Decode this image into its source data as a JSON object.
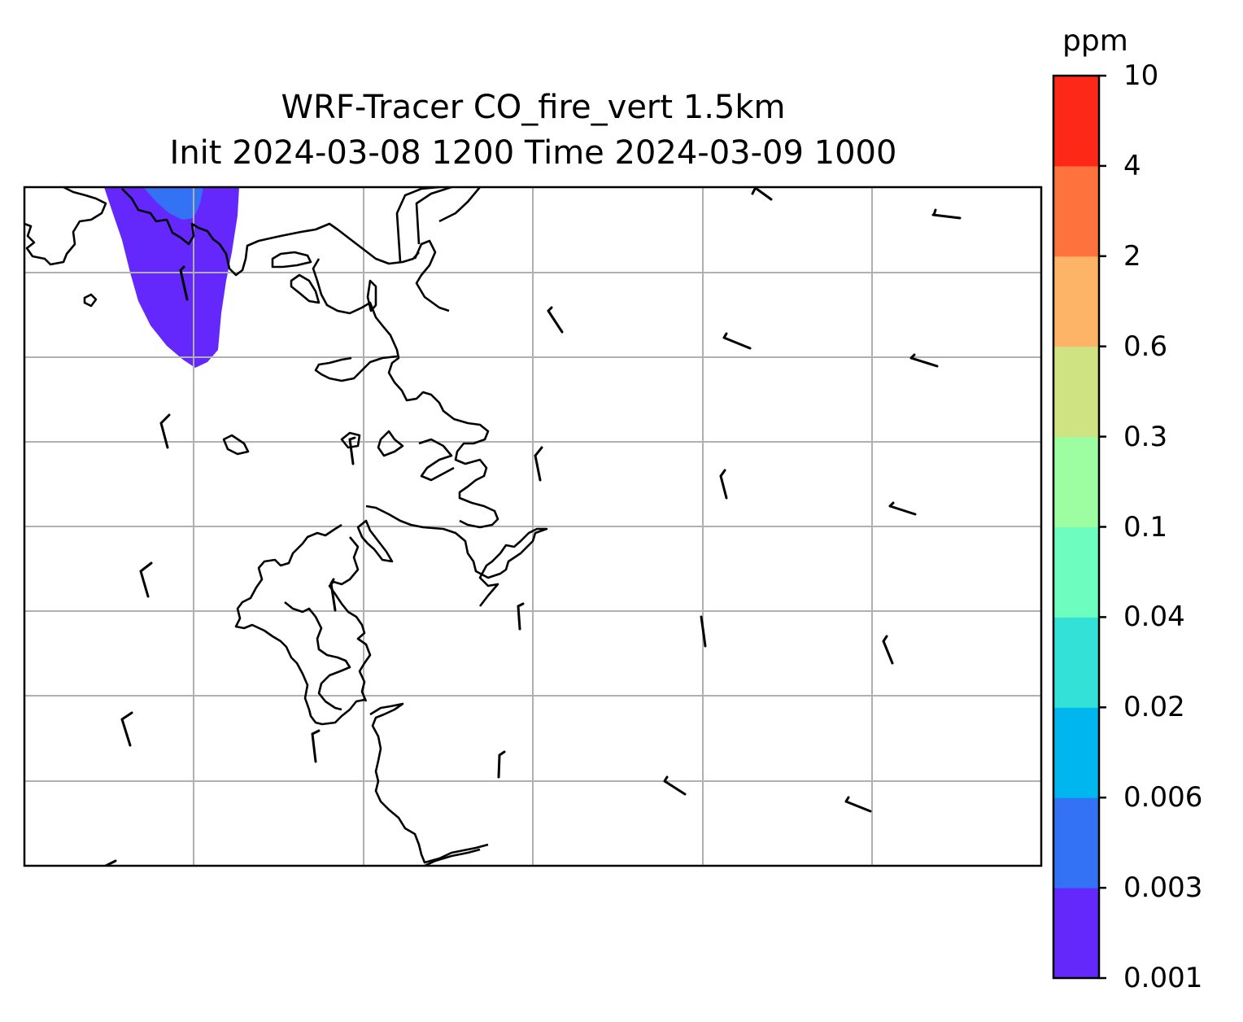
{
  "title": {
    "line1": "WRF-Tracer CO_fire_vert 1.5km",
    "line2": "Init 2024-03-08 1200 Time 2024-03-09 1000"
  },
  "colorbar": {
    "unit": "ppm",
    "levels": [
      "0.001",
      "0.003",
      "0.006",
      "0.02",
      "0.04",
      "0.1",
      "0.3",
      "0.6",
      "2",
      "4",
      "10"
    ],
    "colors": [
      "#6428fc",
      "#3372f4",
      "#00b6ee",
      "#33e1d7",
      "#6dfdbf",
      "#9dfda1",
      "#cfe383",
      "#feb466",
      "#fe723e",
      "#fe2818"
    ]
  },
  "plume": {
    "outer_color": "#6428fc",
    "inner_color": "#3372f4"
  },
  "map": {
    "gridlines": "on",
    "grid_color": "#b0b0b0",
    "coastline_color": "#000000",
    "wind_barbs": "on"
  }
}
